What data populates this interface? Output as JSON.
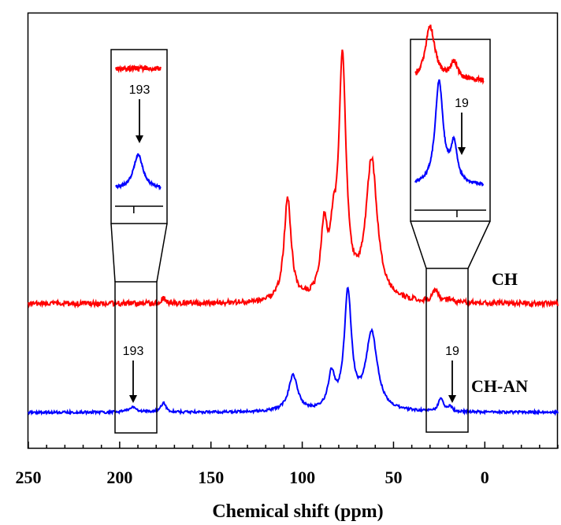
{
  "chart_data": {
    "type": "line",
    "title": "",
    "xlabel": "Chemical shift (ppm)",
    "ylabel": "",
    "xlim": [
      250,
      -40
    ],
    "x_reversed": true,
    "xticks": [
      250,
      200,
      150,
      100,
      50,
      0
    ],
    "xtick_labels": [
      "250",
      "200",
      "150",
      "100",
      "50",
      "0"
    ],
    "grid": false,
    "series": [
      {
        "name": "CH",
        "color": "#ff0000",
        "peaks": [
          {
            "ppm": 193,
            "height": 0.0,
            "width": 3
          },
          {
            "ppm": 176,
            "height": 0.012,
            "width": 1.5
          },
          {
            "ppm": 108,
            "height": 0.235,
            "width": 2.4
          },
          {
            "ppm": 88,
            "height": 0.155,
            "width": 2.2
          },
          {
            "ppm": 83,
            "height": 0.105,
            "width": 2.0
          },
          {
            "ppm": 78,
            "height": 0.545,
            "width": 2.4
          },
          {
            "ppm": 62,
            "height": 0.322,
            "width": 3.8
          },
          {
            "ppm": 27,
            "height": 0.025,
            "width": 2.0
          },
          {
            "ppm": 19,
            "height": 0.008,
            "width": 1.5
          }
        ]
      },
      {
        "name": "CH-AN",
        "color": "#0000ff",
        "peaks": [
          {
            "ppm": 193,
            "height": 0.012,
            "width": 2.5
          },
          {
            "ppm": 176,
            "height": 0.022,
            "width": 1.6
          },
          {
            "ppm": 105,
            "height": 0.082,
            "width": 3.0
          },
          {
            "ppm": 84,
            "height": 0.078,
            "width": 2.2
          },
          {
            "ppm": 75,
            "height": 0.268,
            "width": 2.4
          },
          {
            "ppm": 62,
            "height": 0.178,
            "width": 3.8
          },
          {
            "ppm": 24,
            "height": 0.032,
            "width": 1.6
          },
          {
            "ppm": 19,
            "height": 0.012,
            "width": 1.3
          }
        ]
      }
    ],
    "annotations": [
      {
        "text": "193",
        "ppm": 193,
        "series": "CH-AN"
      },
      {
        "text": "19",
        "ppm": 19,
        "series": "CH-AN"
      },
      {
        "text": "193",
        "ppm": 193,
        "series": "CH-AN",
        "inset": "left"
      },
      {
        "text": "19",
        "ppm": 19,
        "series": "CH-AN",
        "inset": "right"
      }
    ]
  }
}
